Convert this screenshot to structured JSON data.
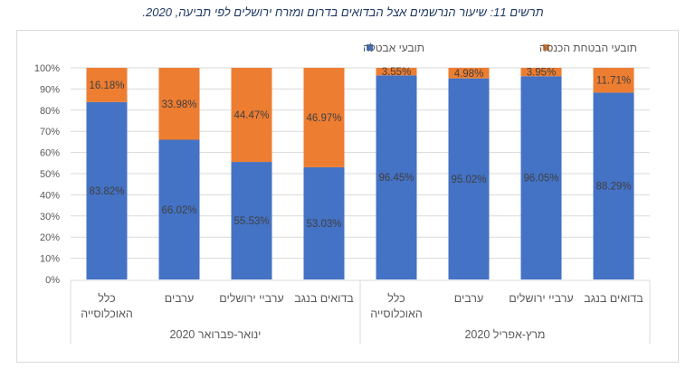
{
  "chart_data": {
    "type": "bar",
    "stacked": true,
    "percent_stacked": true,
    "title": "תרשים 11: שיעור הנרשמים אצל הבדואים בדרום ומזרח ירושלים לפי תביעה, 2020.",
    "groups": [
      {
        "label": "ינואר-פברואר 2020",
        "categories": [
          "כלל האוכלוסייה",
          "ערבים",
          "ערביי ירושלים",
          "בדואים בנגב"
        ]
      },
      {
        "label": "מרץ-אפריל 2020",
        "categories": [
          "כלל האוכלוסייה",
          "ערבים",
          "ערביי ירושלים",
          "בדואים בנגב"
        ]
      }
    ],
    "series": [
      {
        "name": "תובעי אבטלה",
        "color": "#4472c4",
        "values": [
          83.82,
          66.02,
          55.53,
          53.03,
          96.45,
          95.02,
          96.05,
          88.29
        ],
        "labels": [
          "83.82%",
          "66.02%",
          "55.53%",
          "53.03%",
          "96.45%",
          "95.02%",
          "96.05%",
          "88.29%"
        ]
      },
      {
        "name": "תובעי הבטחת הכנסה",
        "color": "#ed7d31",
        "values": [
          16.18,
          33.98,
          44.47,
          46.97,
          3.55,
          4.98,
          3.95,
          11.71
        ],
        "labels": [
          "16.18%",
          "33.98%",
          "44.47%",
          "46.97%",
          "3.55%",
          "4.98%",
          "3.95%",
          "11.71%"
        ]
      }
    ],
    "ylim": [
      0,
      100
    ],
    "yticks": [
      "0%",
      "10%",
      "20%",
      "30%",
      "40%",
      "50%",
      "60%",
      "70%",
      "80%",
      "90%",
      "100%"
    ],
    "grid": true,
    "legend_placement": "top"
  }
}
